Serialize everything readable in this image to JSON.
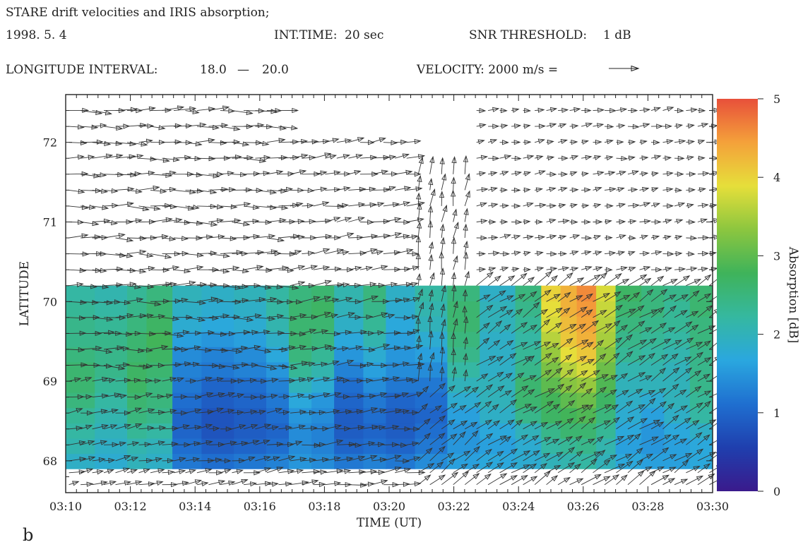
{
  "header": {
    "title": "STARE drift velocities and IRIS absorption;",
    "date": "1998.  5.  4",
    "int_time_label": "INT.TIME:",
    "int_time_value": "20 sec",
    "snr_label": "SNR THRESHOLD:",
    "snr_value": "1 dB",
    "longitude_label": "LONGITUDE INTERVAL:",
    "longitude_from": "18.0",
    "longitude_sep": "—",
    "longitude_to": "20.0",
    "velocity_label": "VELOCITY: 2000 m/s ="
  },
  "panel_label": "b",
  "chart_data": {
    "type": "heatmap",
    "xlabel": "TIME (UT)",
    "ylabel": "LATITUDE",
    "colorbar_label": "Absorption [dB]",
    "xlim_minutes": [
      10,
      30
    ],
    "x_tick_labels": [
      "03:10",
      "03:12",
      "03:14",
      "03:16",
      "03:18",
      "03:20",
      "03:22",
      "03:24",
      "03:26",
      "03:28",
      "03:30"
    ],
    "x_tick_values_minutes": [
      10,
      12,
      14,
      16,
      18,
      20,
      22,
      24,
      26,
      28,
      30
    ],
    "ylim": [
      67.6,
      72.6
    ],
    "y_ticks": [
      68,
      69,
      70,
      71,
      72
    ],
    "colorbar_range": [
      0,
      5
    ],
    "colorbar_ticks": [
      0,
      1,
      2,
      3,
      4,
      5
    ],
    "colormap": [
      "#3a1a8c",
      "#1f3fae",
      "#1f6fd0",
      "#2aa7df",
      "#35b8a0",
      "#3fb35a",
      "#8cc63f",
      "#e6df3a",
      "#f4a13a",
      "#e8503a"
    ],
    "absorption_grid": {
      "lat_range": [
        67.9,
        70.2
      ],
      "rows": 12,
      "columns": [
        {
          "t0": 10.0,
          "t1": 10.9,
          "values": [
            1.9,
            2.1,
            2.2,
            2.3,
            2.5,
            2.6,
            2.6,
            2.5,
            2.4,
            2.4,
            2.3,
            2.2
          ]
        },
        {
          "t0": 10.9,
          "t1": 11.9,
          "values": [
            1.8,
            1.9,
            2.0,
            2.1,
            2.2,
            2.3,
            2.4,
            2.4,
            2.4,
            2.3,
            2.2,
            2.1
          ]
        },
        {
          "t0": 11.9,
          "t1": 12.5,
          "values": [
            2.0,
            2.1,
            2.3,
            2.5,
            2.6,
            2.7,
            2.7,
            2.6,
            2.6,
            2.5,
            2.4,
            2.3
          ]
        },
        {
          "t0": 12.5,
          "t1": 13.3,
          "values": [
            1.9,
            2.0,
            2.2,
            2.4,
            2.5,
            2.5,
            2.6,
            2.7,
            2.8,
            2.7,
            2.6,
            2.5
          ]
        },
        {
          "t0": 13.3,
          "t1": 14.2,
          "values": [
            1.2,
            1.1,
            1.0,
            1.0,
            1.1,
            1.2,
            1.3,
            1.4,
            1.6,
            1.8,
            1.9,
            2.0
          ]
        },
        {
          "t0": 14.2,
          "t1": 15.2,
          "values": [
            1.1,
            0.9,
            0.8,
            0.8,
            0.9,
            1.0,
            1.2,
            1.3,
            1.5,
            1.7,
            1.8,
            1.9
          ]
        },
        {
          "t0": 15.2,
          "t1": 16.2,
          "values": [
            1.2,
            1.0,
            0.9,
            0.9,
            1.0,
            1.1,
            1.3,
            1.4,
            1.6,
            1.8,
            1.9,
            2.0
          ]
        },
        {
          "t0": 16.2,
          "t1": 16.9,
          "values": [
            1.3,
            1.1,
            1.0,
            1.1,
            1.2,
            1.3,
            1.5,
            1.7,
            1.9,
            2.1,
            2.2,
            2.2
          ]
        },
        {
          "t0": 16.9,
          "t1": 17.6,
          "values": [
            1.5,
            1.4,
            1.4,
            1.5,
            1.7,
            2.0,
            2.3,
            2.5,
            2.6,
            2.6,
            2.6,
            2.5
          ]
        },
        {
          "t0": 17.6,
          "t1": 18.3,
          "values": [
            1.4,
            1.3,
            1.3,
            1.4,
            1.5,
            1.8,
            2.1,
            2.3,
            2.5,
            2.6,
            2.7,
            2.6
          ]
        },
        {
          "t0": 18.3,
          "t1": 19.2,
          "values": [
            1.2,
            1.0,
            0.9,
            0.9,
            1.0,
            1.1,
            1.3,
            1.5,
            1.7,
            1.9,
            2.0,
            2.1
          ]
        },
        {
          "t0": 19.2,
          "t1": 19.9,
          "values": [
            1.3,
            1.1,
            1.0,
            1.1,
            1.2,
            1.4,
            1.6,
            1.8,
            2.1,
            2.3,
            2.4,
            2.5
          ]
        },
        {
          "t0": 19.9,
          "t1": 20.8,
          "values": [
            1.2,
            1.0,
            0.9,
            0.9,
            1.0,
            1.2,
            1.4,
            1.5,
            1.6,
            1.7,
            1.8,
            1.9
          ]
        },
        {
          "t0": 20.8,
          "t1": 21.8,
          "values": [
            1.4,
            1.2,
            1.1,
            1.0,
            1.1,
            1.2,
            1.4,
            1.6,
            1.8,
            2.0,
            2.1,
            2.2
          ]
        },
        {
          "t0": 21.8,
          "t1": 22.8,
          "values": [
            1.6,
            1.5,
            1.5,
            1.6,
            1.8,
            2.0,
            2.2,
            2.4,
            2.5,
            2.6,
            2.6,
            2.5
          ]
        },
        {
          "t0": 22.8,
          "t1": 23.9,
          "values": [
            1.7,
            1.6,
            1.7,
            1.9,
            2.0,
            2.0,
            1.9,
            1.9,
            1.9,
            2.0,
            2.0,
            1.9
          ]
        },
        {
          "t0": 23.9,
          "t1": 24.7,
          "values": [
            1.8,
            1.8,
            2.0,
            2.4,
            2.6,
            2.6,
            2.4,
            2.3,
            2.2,
            2.3,
            2.4,
            2.5
          ]
        },
        {
          "t0": 24.7,
          "t1": 25.3,
          "values": [
            2.0,
            2.2,
            2.4,
            2.7,
            2.8,
            3.0,
            3.2,
            3.4,
            3.6,
            3.8,
            3.9,
            4.0
          ]
        },
        {
          "t0": 25.3,
          "t1": 25.8,
          "values": [
            2.1,
            2.3,
            2.6,
            2.8,
            3.0,
            3.3,
            3.6,
            3.9,
            4.1,
            4.2,
            4.3,
            4.3
          ]
        },
        {
          "t0": 25.8,
          "t1": 26.4,
          "values": [
            2.2,
            2.4,
            2.6,
            2.9,
            3.1,
            3.4,
            3.8,
            4.1,
            4.3,
            4.4,
            4.5,
            4.6
          ]
        },
        {
          "t0": 26.4,
          "t1": 27.0,
          "values": [
            2.0,
            2.1,
            2.3,
            2.5,
            2.7,
            2.9,
            3.1,
            3.3,
            3.5,
            3.6,
            3.7,
            3.8
          ]
        },
        {
          "t0": 27.0,
          "t1": 27.8,
          "values": [
            1.7,
            1.6,
            1.7,
            1.8,
            1.9,
            2.0,
            2.1,
            2.3,
            2.4,
            2.5,
            2.6,
            2.7
          ]
        },
        {
          "t0": 27.8,
          "t1": 28.5,
          "values": [
            1.6,
            1.5,
            1.5,
            1.6,
            1.8,
            2.0,
            2.1,
            2.2,
            2.3,
            2.4,
            2.5,
            2.5
          ]
        },
        {
          "t0": 28.5,
          "t1": 29.3,
          "values": [
            1.6,
            1.6,
            1.7,
            1.9,
            2.0,
            2.0,
            2.0,
            2.1,
            2.2,
            2.3,
            2.3,
            2.4
          ]
        },
        {
          "t0": 29.3,
          "t1": 30.0,
          "values": [
            1.7,
            1.7,
            1.9,
            2.2,
            2.3,
            2.4,
            2.4,
            2.4,
            2.5,
            2.5,
            2.6,
            2.6
          ]
        }
      ]
    },
    "velocity_field": {
      "reference_velocity_ms": 2000,
      "lat_rows": [
        67.7,
        67.85,
        68.0,
        68.2,
        68.4,
        68.6,
        68.8,
        69.0,
        69.2,
        69.4,
        69.6,
        69.8,
        70.0,
        70.2,
        70.4,
        70.6,
        70.8,
        71.0,
        71.2,
        71.4,
        71.6,
        71.8,
        72.0,
        72.2,
        72.4
      ],
      "time_step_minutes": 0.36,
      "regions": [
        {
          "t0": 10.0,
          "t1": 16.8,
          "lat0": 69.0,
          "lat1": 72.5,
          "vx": 1200,
          "vy": 0,
          "comment_free": true
        },
        {
          "t0": 10.0,
          "t1": 16.8,
          "lat0": 67.6,
          "lat1": 69.0,
          "vx": 900,
          "vy": 150
        },
        {
          "t0": 16.8,
          "t1": 20.8,
          "lat0": 67.6,
          "lat1": 72.0,
          "vx": 1000,
          "vy": 120
        },
        {
          "t0": 20.8,
          "t1": 22.6,
          "lat0": 68.8,
          "lat1": 71.6,
          "vx": 150,
          "vy": 1000
        },
        {
          "t0": 20.8,
          "t1": 24.5,
          "lat0": 67.6,
          "lat1": 68.8,
          "vx": 900,
          "vy": 700
        },
        {
          "t0": 22.6,
          "t1": 30.0,
          "lat0": 67.6,
          "lat1": 70.4,
          "vx": 1000,
          "vy": 650
        },
        {
          "t0": 22.6,
          "t1": 30.0,
          "lat0": 70.4,
          "lat1": 72.4,
          "vx": 600,
          "vy": 80
        }
      ]
    }
  }
}
